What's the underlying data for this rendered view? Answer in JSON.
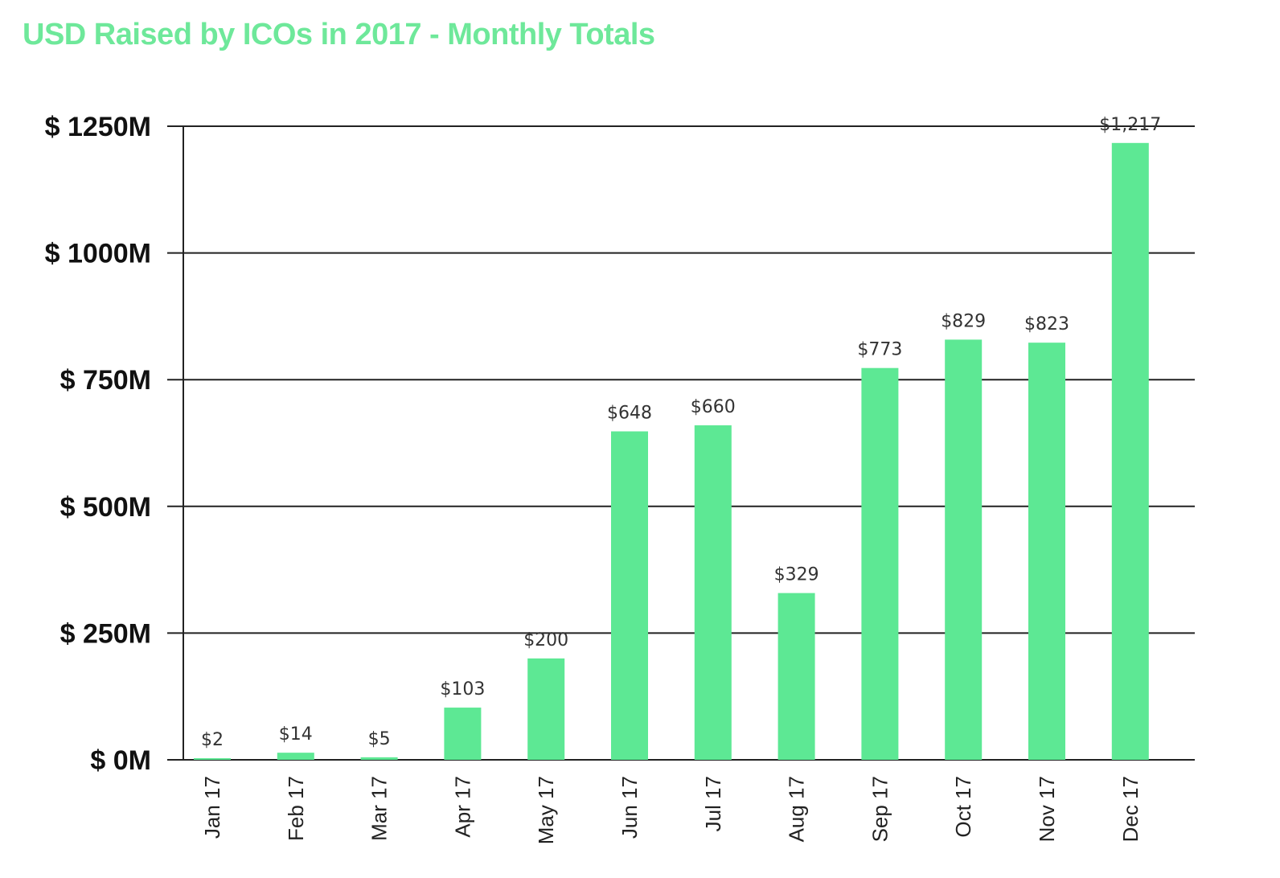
{
  "colors": {
    "accent": "#5de894",
    "title": "#6ee89a",
    "grid": "#222222"
  },
  "chart_data": {
    "type": "bar",
    "title": "USD Raised by ICOs in 2017 - Monthly Totals",
    "xlabel": "",
    "ylabel": "",
    "ylim": [
      0,
      1250
    ],
    "yticks": [
      {
        "value": 0,
        "label": "$ 0M"
      },
      {
        "value": 250,
        "label": "$ 250M"
      },
      {
        "value": 500,
        "label": "$ 500M"
      },
      {
        "value": 750,
        "label": "$ 750M"
      },
      {
        "value": 1000,
        "label": "$ 1000M"
      },
      {
        "value": 1250,
        "label": "$ 1250M"
      }
    ],
    "grid": true,
    "categories": [
      "Jan 17",
      "Feb 17",
      "Mar 17",
      "Apr 17",
      "May 17",
      "Jun 17",
      "Jul 17",
      "Aug 17",
      "Sep 17",
      "Oct 17",
      "Nov 17",
      "Dec 17"
    ],
    "values": [
      2,
      14,
      5,
      103,
      200,
      648,
      660,
      329,
      773,
      829,
      823,
      1217
    ],
    "data_labels": [
      "$2",
      "$14",
      "$5",
      "$103",
      "$200",
      "$648",
      "$660",
      "$329",
      "$773",
      "$829",
      "$823",
      "$1,217"
    ]
  }
}
